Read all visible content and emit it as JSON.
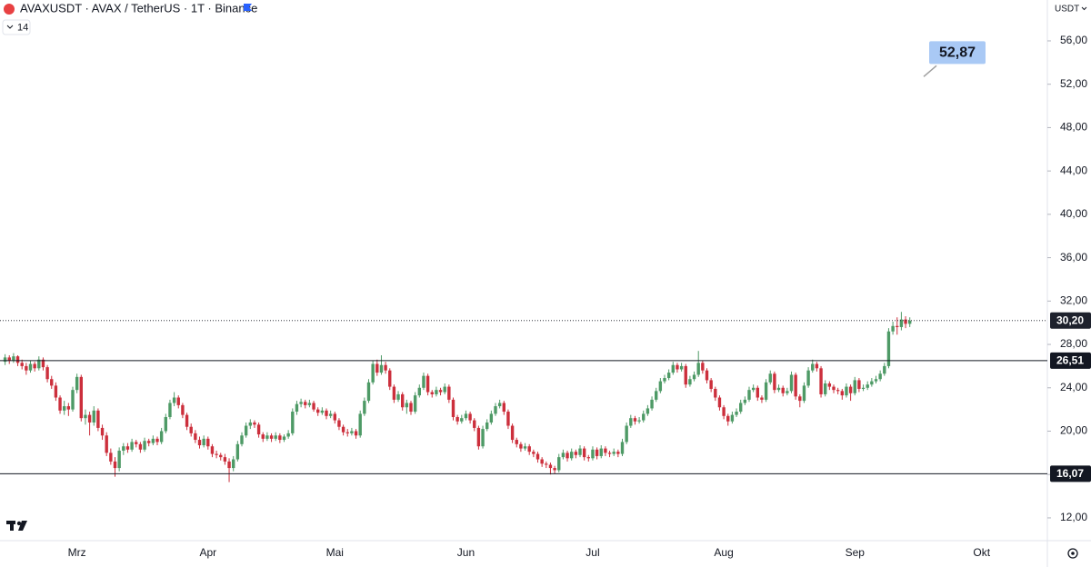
{
  "chart_data": {
    "type": "candlestick",
    "title": "AVAXUSDT · AVAX / TetherUS · 1T · Binance",
    "indicator": "14",
    "currency": "USDT",
    "up_color": "#4e9a66",
    "down_color": "#cc2f3c",
    "ylim": [
      9.9,
      59.77
    ],
    "yticks": [
      {
        "value": 12,
        "label": "12,00"
      },
      {
        "value": 16,
        "label": "16,00"
      },
      {
        "value": 20,
        "label": "20,00"
      },
      {
        "value": 24,
        "label": "24,00"
      },
      {
        "value": 28,
        "label": "28,00"
      },
      {
        "value": 32,
        "label": "32,00"
      },
      {
        "value": 36,
        "label": "36,00"
      },
      {
        "value": 40,
        "label": "40,00"
      },
      {
        "value": 44,
        "label": "44,00"
      },
      {
        "value": 48,
        "label": "48,00"
      },
      {
        "value": 52,
        "label": "52,00"
      },
      {
        "value": 56,
        "label": "56,00"
      }
    ],
    "levels": [
      {
        "value": 26.51,
        "label": "26,51"
      },
      {
        "value": 16.07,
        "label": "16,07"
      }
    ],
    "last_price": {
      "value": 30.2,
      "label": "30,20"
    },
    "annotation": {
      "value": 52.87,
      "label": "52,87"
    },
    "categories": [
      null,
      null,
      null,
      null,
      null,
      null,
      null,
      null,
      null,
      null,
      null,
      null,
      null,
      null,
      null,
      null,
      null,
      "Mrz",
      null,
      null,
      null,
      null,
      null,
      null,
      null,
      null,
      null,
      null,
      null,
      null,
      null,
      null,
      null,
      null,
      null,
      null,
      null,
      null,
      null,
      null,
      null,
      null,
      null,
      null,
      null,
      null,
      null,
      null,
      "Apr",
      null,
      null,
      null,
      null,
      null,
      null,
      null,
      null,
      null,
      null,
      null,
      null,
      null,
      null,
      null,
      null,
      null,
      null,
      null,
      null,
      null,
      null,
      null,
      null,
      null,
      null,
      null,
      null,
      null,
      "Mai",
      null,
      null,
      null,
      null,
      null,
      null,
      null,
      null,
      null,
      null,
      null,
      null,
      null,
      null,
      null,
      null,
      null,
      null,
      null,
      null,
      null,
      null,
      null,
      null,
      null,
      null,
      null,
      null,
      null,
      null,
      "Jun",
      null,
      null,
      null,
      null,
      null,
      null,
      null,
      null,
      null,
      null,
      null,
      null,
      null,
      null,
      null,
      null,
      null,
      null,
      null,
      null,
      null,
      null,
      null,
      null,
      null,
      null,
      null,
      null,
      null,
      "Jul",
      null,
      null,
      null,
      null,
      null,
      null,
      null,
      null,
      null,
      null,
      null,
      null,
      null,
      null,
      null,
      null,
      null,
      null,
      null,
      null,
      null,
      null,
      null,
      null,
      null,
      null,
      null,
      null,
      null,
      null,
      "Aug",
      null,
      null,
      null,
      null,
      null,
      null,
      null,
      null,
      null,
      null,
      null,
      null,
      null,
      null,
      null,
      null,
      null,
      null,
      null,
      null,
      null,
      null,
      null,
      null,
      null,
      null,
      null,
      null,
      null,
      null,
      "Sep",
      null,
      null,
      null,
      null,
      null,
      null,
      null,
      null,
      null,
      null,
      null,
      null,
      null,
      null,
      null,
      null,
      null,
      null,
      null,
      null,
      null,
      null,
      null,
      null,
      null,
      null,
      null,
      null,
      null,
      "Okt"
    ],
    "values": [
      [
        26.4,
        27.1,
        26.1,
        26.8
      ],
      [
        26.8,
        27.0,
        26.2,
        26.5
      ],
      [
        26.5,
        27.2,
        26.3,
        26.9
      ],
      [
        26.9,
        27.0,
        26.0,
        26.3
      ],
      [
        26.3,
        26.6,
        25.7,
        26.0
      ],
      [
        26.0,
        26.3,
        25.2,
        25.6
      ],
      [
        25.6,
        26.5,
        25.4,
        26.2
      ],
      [
        26.2,
        26.4,
        25.5,
        25.8
      ],
      [
        25.8,
        26.9,
        25.6,
        26.6
      ],
      [
        26.6,
        26.8,
        25.6,
        25.9
      ],
      [
        25.9,
        26.1,
        24.5,
        24.8
      ],
      [
        24.8,
        25.1,
        23.9,
        24.2
      ],
      [
        24.2,
        24.5,
        22.8,
        23.1
      ],
      [
        23.1,
        23.3,
        21.6,
        21.9
      ],
      [
        21.9,
        22.8,
        21.5,
        22.3
      ],
      [
        22.3,
        22.6,
        21.4,
        22.0
      ],
      [
        22.0,
        24.1,
        21.8,
        23.8
      ],
      [
        23.8,
        25.3,
        23.5,
        25.0
      ],
      [
        25.0,
        25.2,
        20.9,
        21.2
      ],
      [
        21.2,
        22.0,
        20.6,
        21.5
      ],
      [
        21.5,
        21.8,
        19.6,
        20.8
      ],
      [
        20.8,
        22.3,
        20.5,
        21.9
      ],
      [
        21.9,
        22.1,
        20.0,
        20.3
      ],
      [
        20.3,
        20.6,
        19.2,
        19.6
      ],
      [
        19.6,
        19.9,
        17.7,
        18.0
      ],
      [
        18.0,
        18.4,
        16.9,
        17.2
      ],
      [
        17.2,
        17.6,
        15.8,
        16.6
      ],
      [
        16.6,
        18.5,
        16.3,
        18.2
      ],
      [
        18.2,
        18.9,
        17.8,
        18.6
      ],
      [
        18.6,
        18.9,
        18.0,
        18.3
      ],
      [
        18.3,
        19.3,
        18.1,
        19.0
      ],
      [
        19.0,
        19.2,
        18.5,
        18.8
      ],
      [
        18.8,
        19.0,
        18.0,
        18.3
      ],
      [
        18.3,
        19.4,
        18.1,
        19.1
      ],
      [
        19.1,
        19.3,
        18.6,
        18.9
      ],
      [
        18.9,
        19.6,
        18.7,
        19.3
      ],
      [
        19.3,
        19.5,
        18.7,
        19.0
      ],
      [
        19.0,
        20.3,
        18.8,
        20.0
      ],
      [
        20.0,
        21.6,
        19.8,
        21.3
      ],
      [
        21.3,
        22.9,
        21.1,
        22.6
      ],
      [
        22.6,
        23.6,
        22.3,
        23.1
      ],
      [
        23.1,
        23.3,
        22.1,
        22.4
      ],
      [
        22.4,
        22.6,
        21.2,
        21.5
      ],
      [
        21.5,
        21.7,
        20.1,
        20.4
      ],
      [
        20.4,
        20.7,
        19.5,
        19.8
      ],
      [
        19.8,
        20.1,
        18.9,
        19.2
      ],
      [
        19.2,
        19.5,
        18.4,
        18.7
      ],
      [
        18.7,
        19.6,
        18.5,
        19.3
      ],
      [
        19.3,
        19.5,
        18.3,
        18.6
      ],
      [
        18.6,
        18.8,
        17.6,
        17.9
      ],
      [
        17.9,
        18.2,
        17.5,
        17.8
      ],
      [
        17.8,
        18.0,
        17.3,
        17.6
      ],
      [
        17.6,
        17.9,
        16.9,
        17.2
      ],
      [
        17.2,
        17.5,
        15.3,
        16.6
      ],
      [
        16.6,
        17.7,
        16.3,
        17.4
      ],
      [
        17.4,
        19.1,
        17.2,
        18.8
      ],
      [
        18.8,
        19.9,
        18.6,
        19.6
      ],
      [
        19.6,
        20.8,
        19.4,
        20.5
      ],
      [
        20.5,
        21.1,
        20.2,
        20.8
      ],
      [
        20.8,
        21.0,
        20.3,
        20.6
      ],
      [
        20.6,
        20.8,
        19.4,
        19.7
      ],
      [
        19.7,
        19.9,
        19.0,
        19.3
      ],
      [
        19.3,
        19.9,
        19.1,
        19.6
      ],
      [
        19.6,
        19.8,
        19.0,
        19.3
      ],
      [
        19.3,
        19.9,
        19.1,
        19.6
      ],
      [
        19.6,
        19.8,
        18.9,
        19.2
      ],
      [
        19.2,
        19.7,
        19.0,
        19.5
      ],
      [
        19.5,
        20.1,
        19.3,
        19.8
      ],
      [
        19.8,
        22.1,
        19.6,
        21.8
      ],
      [
        21.8,
        22.8,
        21.5,
        22.5
      ],
      [
        22.5,
        23.0,
        22.2,
        22.7
      ],
      [
        22.7,
        22.9,
        22.1,
        22.4
      ],
      [
        22.4,
        22.9,
        22.2,
        22.6
      ],
      [
        22.6,
        22.8,
        21.8,
        22.0
      ],
      [
        22.0,
        22.2,
        21.4,
        21.7
      ],
      [
        21.7,
        22.2,
        21.5,
        21.9
      ],
      [
        21.9,
        22.1,
        21.1,
        21.4
      ],
      [
        21.4,
        21.9,
        21.2,
        21.6
      ],
      [
        21.6,
        21.8,
        20.7,
        21.0
      ],
      [
        21.0,
        21.2,
        20.1,
        20.4
      ],
      [
        20.4,
        20.6,
        19.6,
        19.9
      ],
      [
        19.9,
        20.2,
        19.5,
        19.8
      ],
      [
        19.8,
        20.3,
        19.6,
        20.0
      ],
      [
        20.0,
        20.2,
        19.3,
        19.6
      ],
      [
        19.6,
        21.9,
        19.4,
        21.6
      ],
      [
        21.6,
        23.1,
        21.4,
        22.8
      ],
      [
        22.8,
        24.8,
        22.6,
        24.5
      ],
      [
        24.5,
        26.5,
        24.3,
        26.2
      ],
      [
        26.2,
        26.6,
        25.1,
        25.4
      ],
      [
        25.4,
        27.0,
        25.2,
        26.1
      ],
      [
        26.1,
        26.4,
        25.3,
        25.6
      ],
      [
        25.6,
        25.8,
        23.8,
        24.1
      ],
      [
        24.1,
        24.3,
        22.6,
        22.9
      ],
      [
        22.9,
        23.7,
        22.7,
        23.4
      ],
      [
        23.4,
        23.6,
        21.9,
        22.2
      ],
      [
        22.2,
        22.9,
        21.6,
        22.6
      ],
      [
        22.6,
        22.8,
        21.5,
        21.8
      ],
      [
        21.8,
        23.6,
        21.6,
        23.3
      ],
      [
        23.3,
        24.3,
        23.1,
        24.0
      ],
      [
        24.0,
        25.4,
        23.8,
        25.1
      ],
      [
        25.1,
        25.3,
        23.3,
        23.6
      ],
      [
        23.6,
        23.8,
        23.1,
        23.4
      ],
      [
        23.4,
        24.1,
        23.2,
        23.8
      ],
      [
        23.8,
        24.0,
        23.3,
        23.6
      ],
      [
        23.6,
        24.4,
        23.4,
        24.1
      ],
      [
        24.1,
        24.3,
        22.6,
        22.9
      ],
      [
        22.9,
        23.1,
        21.0,
        21.3
      ],
      [
        21.3,
        21.5,
        20.6,
        20.9
      ],
      [
        20.9,
        21.5,
        20.7,
        21.2
      ],
      [
        21.2,
        21.9,
        21.0,
        21.6
      ],
      [
        21.6,
        21.8,
        20.7,
        21.0
      ],
      [
        21.0,
        21.2,
        20.0,
        20.3
      ],
      [
        20.3,
        20.5,
        18.3,
        18.6
      ],
      [
        18.6,
        20.5,
        18.4,
        20.2
      ],
      [
        20.2,
        21.1,
        20.0,
        20.8
      ],
      [
        20.8,
        21.9,
        20.6,
        21.6
      ],
      [
        21.6,
        22.6,
        21.4,
        22.3
      ],
      [
        22.3,
        22.9,
        22.1,
        22.6
      ],
      [
        22.6,
        22.8,
        21.5,
        21.8
      ],
      [
        21.8,
        22.0,
        20.2,
        20.5
      ],
      [
        20.5,
        20.7,
        18.9,
        19.2
      ],
      [
        19.2,
        19.4,
        18.5,
        18.8
      ],
      [
        18.8,
        19.0,
        18.1,
        18.4
      ],
      [
        18.4,
        18.9,
        18.2,
        18.6
      ],
      [
        18.6,
        18.8,
        17.8,
        18.1
      ],
      [
        18.1,
        18.3,
        17.6,
        17.9
      ],
      [
        17.9,
        18.1,
        17.1,
        17.4
      ],
      [
        17.4,
        17.6,
        16.7,
        17.0
      ],
      [
        17.0,
        17.2,
        16.6,
        16.9
      ],
      [
        16.9,
        17.1,
        16.0,
        16.6
      ],
      [
        16.6,
        16.8,
        16.1,
        16.4
      ],
      [
        16.4,
        17.9,
        16.2,
        17.6
      ],
      [
        17.6,
        18.3,
        17.4,
        18.0
      ],
      [
        18.0,
        18.2,
        17.2,
        17.5
      ],
      [
        17.5,
        18.4,
        17.3,
        18.1
      ],
      [
        18.1,
        18.3,
        17.5,
        17.8
      ],
      [
        17.8,
        18.7,
        17.6,
        18.4
      ],
      [
        18.4,
        18.6,
        17.3,
        17.6
      ],
      [
        17.6,
        17.8,
        17.2,
        17.5
      ],
      [
        17.5,
        18.6,
        17.3,
        18.3
      ],
      [
        18.3,
        18.5,
        17.4,
        17.7
      ],
      [
        17.7,
        18.7,
        17.5,
        18.4
      ],
      [
        18.4,
        18.6,
        17.7,
        18.0
      ],
      [
        18.0,
        18.2,
        17.6,
        17.9
      ],
      [
        17.9,
        18.4,
        17.7,
        18.1
      ],
      [
        18.1,
        18.3,
        17.6,
        17.9
      ],
      [
        17.9,
        19.3,
        17.7,
        19.0
      ],
      [
        19.0,
        20.8,
        18.8,
        20.5
      ],
      [
        20.5,
        21.5,
        20.3,
        21.2
      ],
      [
        21.2,
        21.4,
        20.6,
        20.9
      ],
      [
        20.9,
        21.3,
        20.7,
        21.0
      ],
      [
        21.0,
        21.9,
        20.8,
        21.6
      ],
      [
        21.6,
        22.4,
        21.4,
        22.1
      ],
      [
        22.1,
        23.2,
        21.9,
        22.9
      ],
      [
        22.9,
        24.0,
        22.7,
        23.7
      ],
      [
        23.7,
        24.9,
        23.5,
        24.6
      ],
      [
        24.6,
        25.2,
        24.4,
        24.9
      ],
      [
        24.9,
        25.7,
        24.7,
        25.4
      ],
      [
        25.4,
        26.4,
        25.2,
        26.1
      ],
      [
        26.1,
        26.3,
        25.4,
        25.7
      ],
      [
        25.7,
        26.3,
        25.5,
        26.0
      ],
      [
        26.0,
        26.2,
        24.0,
        24.3
      ],
      [
        24.3,
        25.1,
        24.1,
        24.8
      ],
      [
        24.8,
        25.5,
        24.6,
        25.2
      ],
      [
        25.2,
        27.4,
        25.0,
        26.3
      ],
      [
        26.3,
        26.5,
        25.3,
        25.6
      ],
      [
        25.6,
        25.8,
        24.4,
        24.7
      ],
      [
        24.7,
        24.9,
        23.6,
        23.9
      ],
      [
        23.9,
        24.1,
        22.8,
        23.1
      ],
      [
        23.1,
        23.3,
        21.9,
        22.2
      ],
      [
        22.2,
        22.4,
        21.1,
        21.4
      ],
      [
        21.4,
        21.6,
        20.5,
        20.9
      ],
      [
        20.9,
        21.8,
        20.7,
        21.5
      ],
      [
        21.5,
        22.1,
        21.3,
        21.8
      ],
      [
        21.8,
        22.9,
        21.6,
        22.6
      ],
      [
        22.6,
        23.2,
        22.4,
        22.9
      ],
      [
        22.9,
        24.1,
        22.7,
        23.8
      ],
      [
        23.8,
        24.3,
        23.6,
        24.0
      ],
      [
        24.0,
        24.2,
        22.8,
        23.1
      ],
      [
        23.1,
        23.3,
        22.6,
        22.9
      ],
      [
        22.9,
        24.8,
        22.7,
        24.5
      ],
      [
        24.5,
        25.6,
        24.3,
        25.3
      ],
      [
        25.3,
        25.5,
        23.5,
        23.8
      ],
      [
        23.8,
        24.3,
        23.6,
        24.0
      ],
      [
        24.0,
        24.2,
        23.2,
        23.5
      ],
      [
        23.5,
        24.0,
        23.3,
        23.7
      ],
      [
        23.7,
        25.5,
        23.5,
        25.2
      ],
      [
        25.2,
        25.4,
        22.9,
        23.2
      ],
      [
        23.2,
        23.4,
        22.2,
        22.8
      ],
      [
        22.8,
        24.5,
        22.6,
        24.2
      ],
      [
        24.2,
        25.9,
        24.0,
        25.6
      ],
      [
        25.6,
        26.6,
        25.4,
        26.2
      ],
      [
        26.2,
        26.4,
        25.5,
        25.8
      ],
      [
        25.8,
        26.0,
        23.1,
        23.4
      ],
      [
        23.4,
        24.7,
        23.2,
        24.4
      ],
      [
        24.4,
        24.6,
        23.8,
        24.1
      ],
      [
        24.1,
        24.3,
        23.5,
        23.8
      ],
      [
        23.8,
        24.0,
        23.4,
        23.7
      ],
      [
        23.7,
        23.9,
        22.9,
        23.3
      ],
      [
        23.3,
        24.4,
        23.1,
        24.1
      ],
      [
        24.1,
        24.3,
        22.8,
        23.5
      ],
      [
        23.5,
        25.0,
        23.3,
        24.7
      ],
      [
        24.7,
        24.9,
        23.6,
        23.9
      ],
      [
        23.9,
        24.3,
        23.7,
        24.0
      ],
      [
        24.0,
        24.6,
        23.8,
        24.3
      ],
      [
        24.3,
        24.9,
        24.1,
        24.6
      ],
      [
        24.6,
        25.1,
        24.4,
        24.8
      ],
      [
        24.8,
        25.6,
        24.6,
        25.3
      ],
      [
        25.3,
        26.3,
        25.1,
        26.0
      ],
      [
        26.0,
        29.5,
        25.8,
        29.2
      ],
      [
        29.2,
        30.1,
        28.9,
        29.7
      ],
      [
        29.7,
        30.5,
        28.9,
        29.6
      ],
      [
        29.6,
        31.0,
        29.3,
        30.3
      ],
      [
        30.3,
        30.6,
        29.5,
        29.9
      ],
      [
        29.9,
        30.5,
        29.6,
        30.2
      ],
      null,
      null,
      null,
      null,
      null,
      null,
      null,
      null,
      null,
      null,
      null,
      null,
      null,
      null,
      null,
      null,
      null
    ]
  }
}
